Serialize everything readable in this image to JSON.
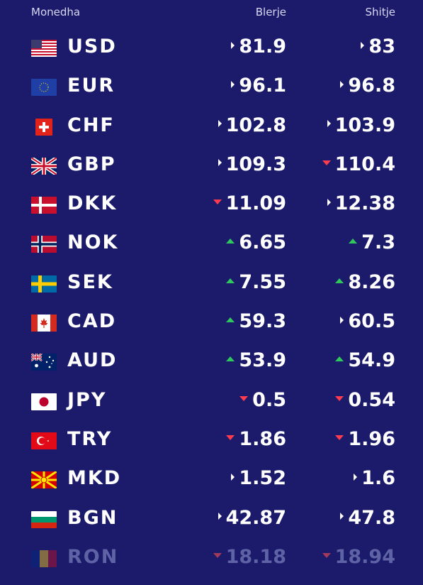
{
  "header": {
    "currency": "Monedha",
    "buy": "Blerje",
    "sell": "Shitje"
  },
  "colors": {
    "background": "#1c1a6b",
    "up": "#2fc85d",
    "down": "#ff3b4e",
    "neutral": "#ffffff"
  },
  "rows": [
    {
      "code": "USD",
      "buy": "81.9",
      "buy_trend": "neutral",
      "sell": "83",
      "sell_trend": "neutral",
      "flag": "us-flag-icon"
    },
    {
      "code": "EUR",
      "buy": "96.1",
      "buy_trend": "neutral",
      "sell": "96.8",
      "sell_trend": "neutral",
      "flag": "eu-flag-icon"
    },
    {
      "code": "CHF",
      "buy": "102.8",
      "buy_trend": "neutral",
      "sell": "103.9",
      "sell_trend": "neutral",
      "flag": "ch-flag-icon"
    },
    {
      "code": "GBP",
      "buy": "109.3",
      "buy_trend": "neutral",
      "sell": "110.4",
      "sell_trend": "down",
      "flag": "gb-flag-icon"
    },
    {
      "code": "DKK",
      "buy": "11.09",
      "buy_trend": "down",
      "sell": "12.38",
      "sell_trend": "neutral",
      "flag": "dk-flag-icon"
    },
    {
      "code": "NOK",
      "buy": "6.65",
      "buy_trend": "up",
      "sell": "7.3",
      "sell_trend": "up",
      "flag": "no-flag-icon"
    },
    {
      "code": "SEK",
      "buy": "7.55",
      "buy_trend": "up",
      "sell": "8.26",
      "sell_trend": "up",
      "flag": "se-flag-icon"
    },
    {
      "code": "CAD",
      "buy": "59.3",
      "buy_trend": "up",
      "sell": "60.5",
      "sell_trend": "neutral",
      "flag": "ca-flag-icon"
    },
    {
      "code": "AUD",
      "buy": "53.9",
      "buy_trend": "up",
      "sell": "54.9",
      "sell_trend": "up",
      "flag": "au-flag-icon"
    },
    {
      "code": "JPY",
      "buy": "0.5",
      "buy_trend": "down",
      "sell": "0.54",
      "sell_trend": "down",
      "flag": "jp-flag-icon"
    },
    {
      "code": "TRY",
      "buy": "1.86",
      "buy_trend": "down",
      "sell": "1.96",
      "sell_trend": "down",
      "flag": "tr-flag-icon"
    },
    {
      "code": "MKD",
      "buy": "1.52",
      "buy_trend": "neutral",
      "sell": "1.6",
      "sell_trend": "neutral",
      "flag": "mk-flag-icon"
    },
    {
      "code": "BGN",
      "buy": "42.87",
      "buy_trend": "neutral",
      "sell": "47.8",
      "sell_trend": "neutral",
      "flag": "bg-flag-icon"
    },
    {
      "code": "RON",
      "buy": "18.18",
      "buy_trend": "down",
      "sell": "18.94",
      "sell_trend": "down",
      "flag": "ro-flag-icon"
    }
  ]
}
